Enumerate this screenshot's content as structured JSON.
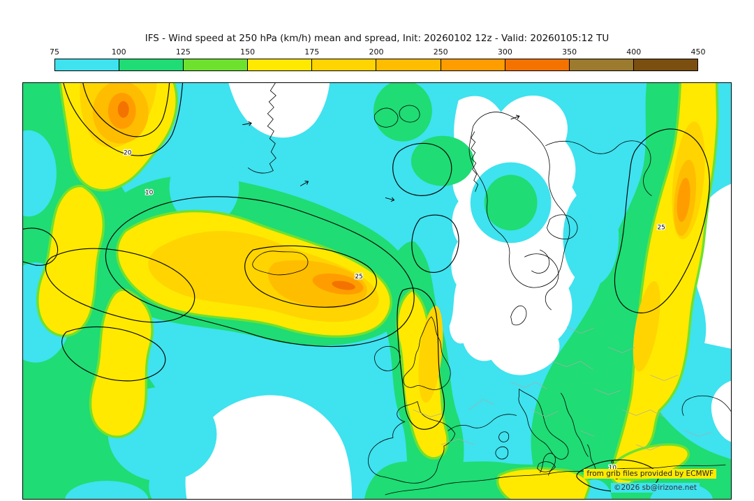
{
  "header": {
    "title": "IFS - Wind speed at 250 hPa (km/h) mean and spread, Init: 20260102 12z - Valid: 20260105:12 TU"
  },
  "colorbar": {
    "ticks": [
      "75",
      "100",
      "125",
      "150",
      "175",
      "200",
      "250",
      "300",
      "350",
      "400",
      "450"
    ],
    "colors": [
      "#3fe2ef",
      "#1fdc74",
      "#6ee12f",
      "#ffe900",
      "#ffd400",
      "#ffbd00",
      "#ff9d00",
      "#f47300",
      "#9c7a2e",
      "#7a4f10"
    ]
  },
  "map": {
    "contour_labels": [
      {
        "text": "20"
      },
      {
        "text": "10"
      },
      {
        "text": "25"
      },
      {
        "text": "25"
      },
      {
        "text": "10"
      }
    ],
    "attribution_line1": "from grib files provided by ECMWF",
    "attribution_line2": "©2026 sb@irizone.net"
  },
  "chart_data": {
    "type": "heatmap",
    "title": "IFS - Wind speed at 250 hPa (km/h) mean and spread",
    "model": "IFS",
    "variable": "Wind speed at 250 hPa",
    "units": "km/h",
    "init": "20260102 12z",
    "valid": "20260105:12 TU",
    "levels": [
      75,
      100,
      125,
      150,
      175,
      200,
      250,
      300,
      350,
      400,
      450
    ],
    "level_colors": [
      "#3fe2ef",
      "#1fdc74",
      "#6ee12f",
      "#ffe900",
      "#ffd400",
      "#ffbd00",
      "#ff9d00",
      "#f47300",
      "#9c7a2e",
      "#7a4f10"
    ],
    "legend_position": "top",
    "region": "North Atlantic / Europe",
    "fill_field": "ensemble mean wind speed (filled contours)",
    "contour_field": "ensemble spread (black contours)",
    "spread_contour_labels": [
      20,
      10,
      25,
      25,
      10
    ],
    "source_note": "from grib files provided by ECMWF",
    "copyright": "©2026 sb@irizone.net"
  }
}
